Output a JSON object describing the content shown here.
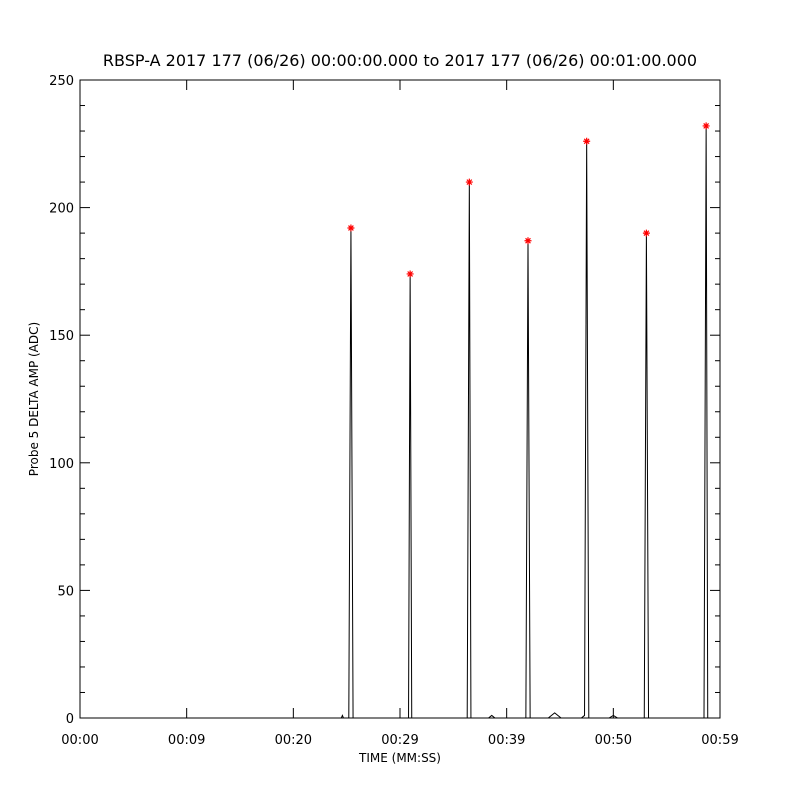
{
  "chart_data": {
    "type": "line",
    "title": "RBSP-A 2017 177 (06/26) 00:00:00.000 to 2017 177 (06/26) 00:01:00.000",
    "xlabel": "TIME (MM:SS)",
    "ylabel": "Probe 5 DELTA AMP (ADC)",
    "xlim": [
      0,
      60
    ],
    "xticks": [
      {
        "value": 0,
        "label": "00:00"
      },
      {
        "value": 10,
        "label": "00:09"
      },
      {
        "value": 20,
        "label": "00:20"
      },
      {
        "value": 30,
        "label": "00:29"
      },
      {
        "value": 40,
        "label": "00:39"
      },
      {
        "value": 50,
        "label": "00:50"
      },
      {
        "value": 60,
        "label": "00:59"
      }
    ],
    "ylim": [
      0,
      250
    ],
    "yticks": [
      0,
      50,
      100,
      150,
      200,
      250
    ],
    "y_minor_per_major": 5,
    "grid": false,
    "series": [
      {
        "color": "#000000",
        "x": [
          0,
          24.5,
          24.6,
          24.7,
          25.2,
          25.4,
          25.6,
          30.8,
          30.95,
          31.1,
          36.3,
          36.5,
          36.65,
          38.3,
          38.6,
          38.9,
          41.8,
          42.0,
          42.2,
          43.9,
          44.5,
          45.1,
          47.0,
          47.3,
          47.5,
          47.7,
          49.6,
          50.0,
          50.4,
          52.9,
          53.1,
          53.3,
          58.5,
          58.7,
          58.85,
          60
        ],
        "values": [
          0,
          0,
          1,
          0,
          0,
          192,
          0,
          0,
          174,
          0,
          0,
          210,
          0,
          0,
          1,
          0,
          0,
          187,
          0,
          0,
          2,
          0,
          0,
          1,
          226,
          0,
          0,
          1,
          0,
          0,
          190,
          0,
          0,
          232,
          0,
          0
        ]
      },
      {
        "color": "#ff0000",
        "marker": "*",
        "x": [
          25.4,
          30.95,
          36.5,
          42.0,
          47.5,
          53.1,
          58.7
        ],
        "values": [
          192,
          174,
          210,
          187,
          226,
          190,
          232
        ]
      }
    ]
  }
}
